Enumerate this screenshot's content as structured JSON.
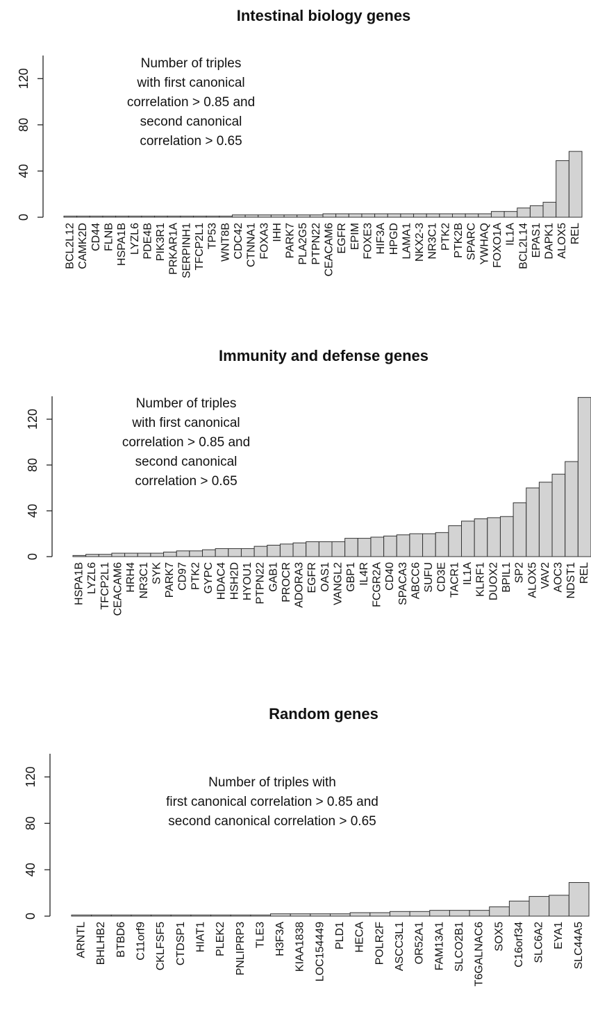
{
  "chart_data": [
    {
      "type": "bar",
      "title": "Intestinal biology genes",
      "annotation": [
        "Number of triples",
        "with first canonical",
        "correlation >  0.85 and",
        "second canonical",
        "correlation >  0.65"
      ],
      "categories": [
        "BCL2L12",
        "CAMK2D",
        "CD44",
        "FLNB",
        "HSPA1B",
        "LYZL6",
        "PDE4B",
        "PIK3R1",
        "PRKAR1A",
        "SERPINH1",
        "TFCP2L1",
        "TP53",
        "WNT8B",
        "CDC42",
        "CTNNA1",
        "FOXA3",
        "IHH",
        "PARK7",
        "PLA2G5",
        "PTPN22",
        "CEACAM6",
        "EGFR",
        "EPIM",
        "FOXE3",
        "HIF3A",
        "HPGD",
        "LAMA1",
        "NKX2-3",
        "NR3C1",
        "PTK2",
        "PTK2B",
        "SPARC",
        "YWHAQ",
        "FOXO1A",
        "IL1A",
        "BCL2L14",
        "EPAS1",
        "DAPK1",
        "ALOX5",
        "REL"
      ],
      "values": [
        1,
        1,
        1,
        1,
        1,
        1,
        1,
        1,
        1,
        1,
        1,
        1,
        1,
        2,
        2,
        2,
        2,
        2,
        2,
        2,
        3,
        3,
        3,
        3,
        3,
        3,
        3,
        3,
        3,
        3,
        3,
        3,
        3,
        5,
        5,
        8,
        10,
        13,
        49,
        57
      ],
      "color": "#d3d3d3",
      "ylim": [
        0,
        140
      ],
      "yticks": [
        0,
        40,
        80,
        120
      ]
    },
    {
      "type": "bar",
      "title": "Immunity and defense genes",
      "annotation": [
        "Number of triples",
        "with first canonical",
        "correlation >  0.85 and",
        "second canonical",
        "correlation >  0.65"
      ],
      "categories": [
        "HSPA1B",
        "LYZL6",
        "TFCP2L1",
        "CEACAM6",
        "HRH4",
        "NR3C1",
        "SYK",
        "PARK7",
        "CD97",
        "PTK2",
        "GYPC",
        "HDAC4",
        "HSH2D",
        "HYOU1",
        "PTPN22",
        "GAB1",
        "PROCR",
        "ADORA3",
        "EGFR",
        "OAS1",
        "VANGL2",
        "GBP1",
        "IL4R",
        "FCGR2A",
        "CD40",
        "SPACA3",
        "ABCC6",
        "SUFU",
        "CD3E",
        "TACR1",
        "IL1A",
        "KLRF1",
        "DUOX2",
        "BPIL1",
        "SP2",
        "ALOX5",
        "VAV2",
        "AOC3",
        "NDST1",
        "REL"
      ],
      "values": [
        1,
        2,
        2,
        3,
        3,
        3,
        3,
        4,
        5,
        5,
        6,
        7,
        7,
        7,
        9,
        10,
        11,
        12,
        13,
        13,
        13,
        16,
        16,
        17,
        18,
        19,
        20,
        20,
        21,
        27,
        31,
        33,
        34,
        35,
        47,
        60,
        65,
        72,
        83,
        139
      ],
      "color": "#d3d3d3",
      "ylim": [
        0,
        140
      ],
      "yticks": [
        0,
        40,
        80,
        120
      ]
    },
    {
      "type": "bar",
      "title": "Random genes",
      "annotation": [
        "Number of triples with",
        "first canonical correlation > 0.85 and",
        "second canonical correlation > 0.65"
      ],
      "categories": [
        "ARNTL",
        "BHLHB2",
        "BTBD6",
        "C11orf9",
        "CKLFSF5",
        "CTDSP1",
        "HIAT1",
        "PLEK2",
        "PNLIPRP3",
        "TLE3",
        "H3F3A",
        "KIAA1838",
        "LOC154449",
        "PLD1",
        "HECA",
        "POLR2F",
        "ASCC3L1",
        "OR52A1",
        "FAM13A1",
        "SLCO2B1",
        "T6GALNAC6",
        "SOX5",
        "C16orf34",
        "SLC6A2",
        "EYA1",
        "SLC44A5"
      ],
      "values": [
        1,
        1,
        1,
        1,
        1,
        1,
        1,
        1,
        1,
        1,
        2,
        2,
        2,
        2,
        3,
        3,
        4,
        4,
        5,
        5,
        5,
        8,
        13,
        17,
        18,
        29
      ],
      "color": "#d3d3d3",
      "ylim": [
        0,
        140
      ],
      "yticks": [
        0,
        40,
        80,
        120
      ]
    }
  ]
}
